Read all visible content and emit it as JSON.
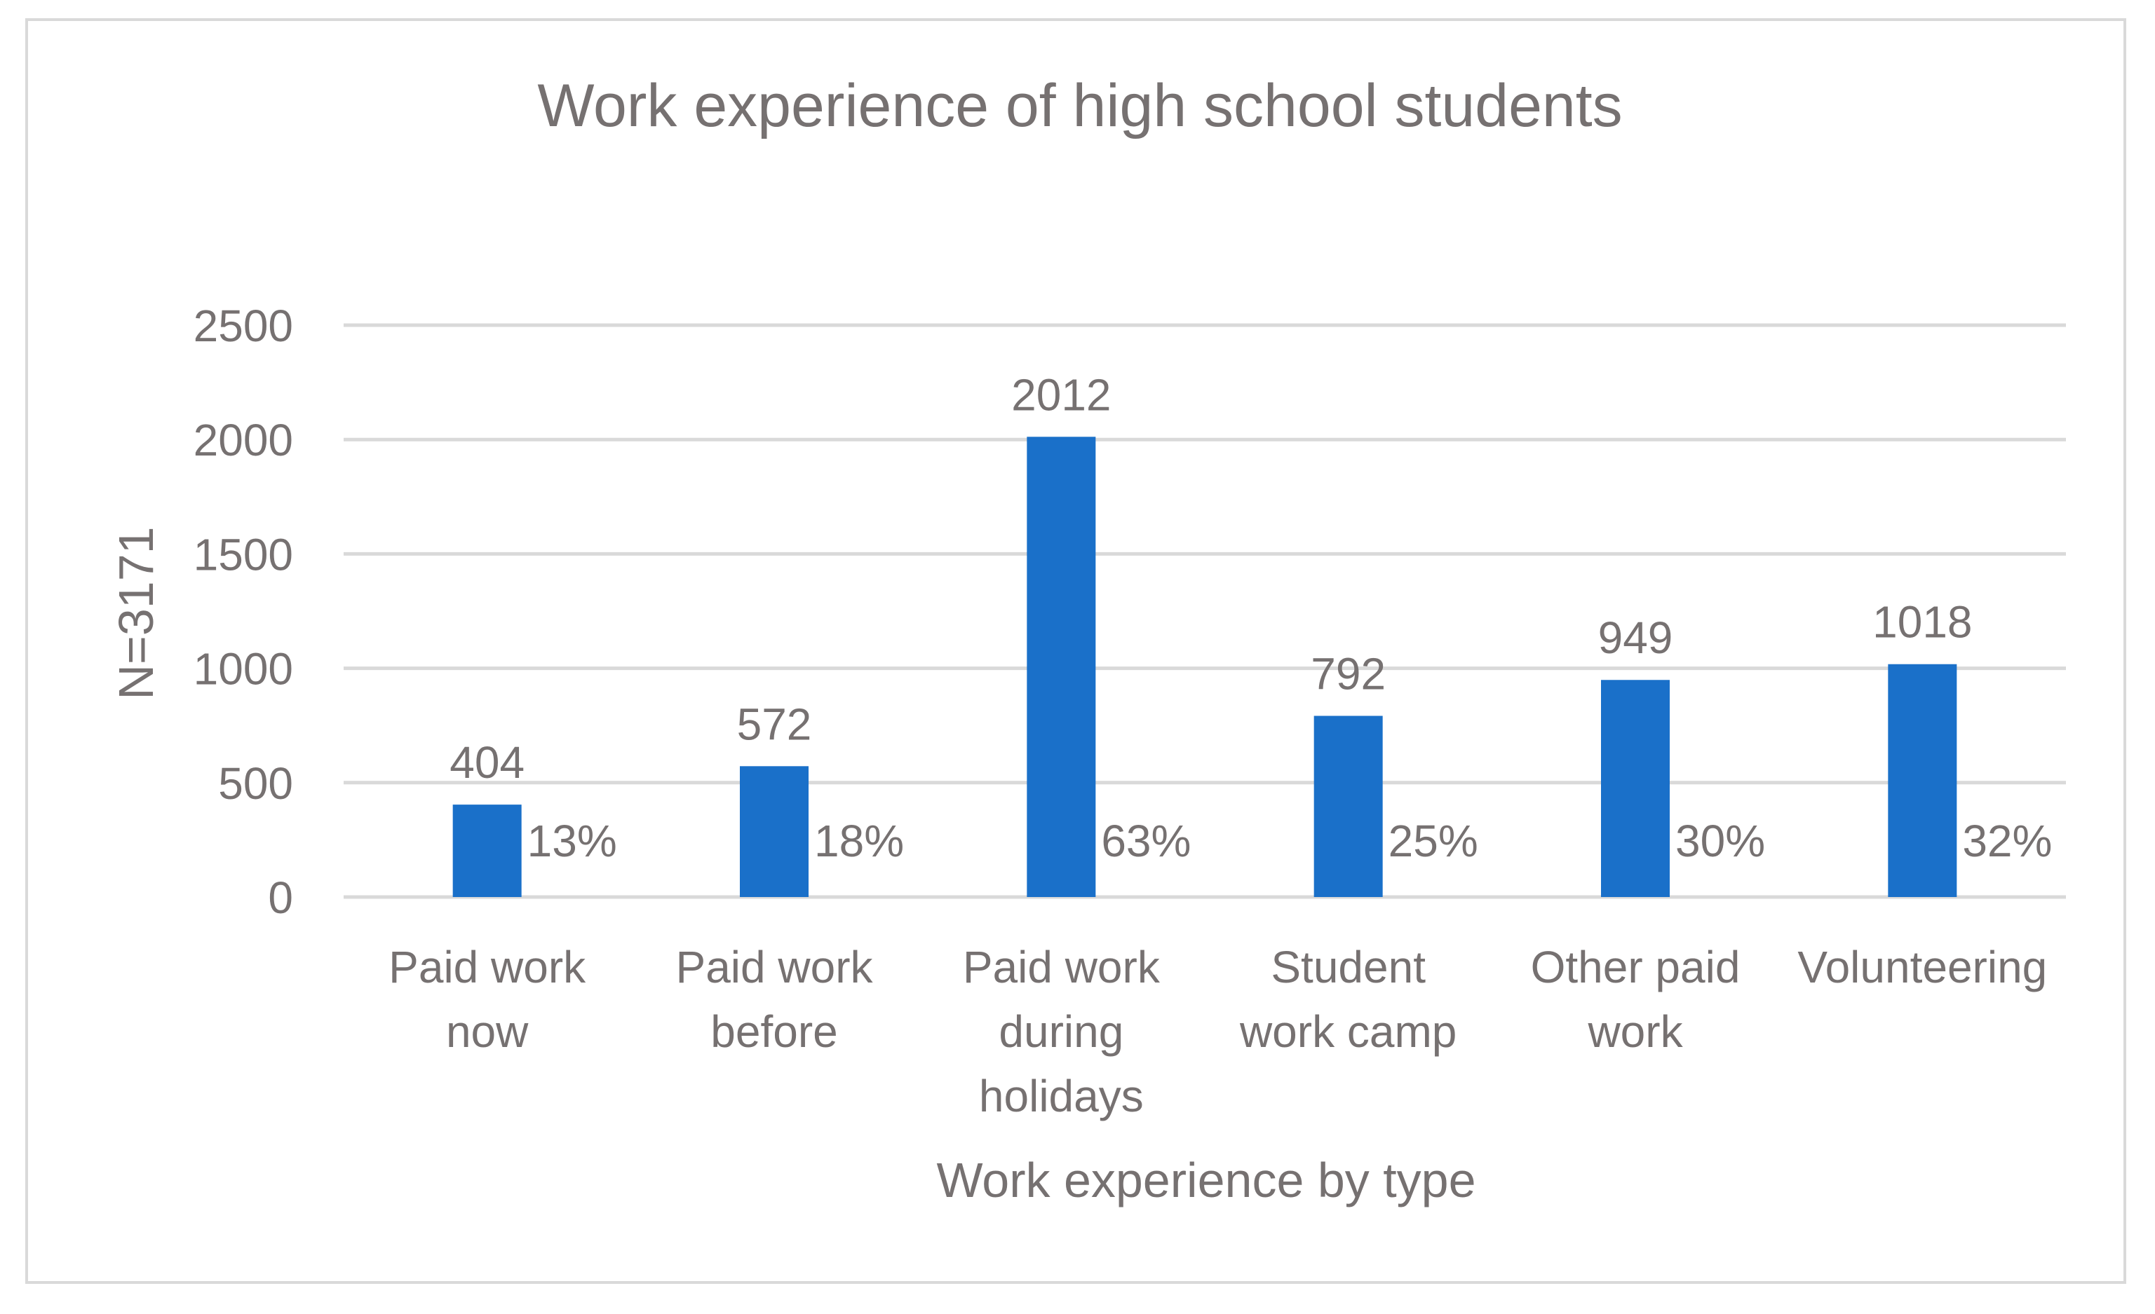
{
  "chart_data": {
    "type": "bar",
    "title": "Work experience of high school students",
    "xlabel": "Work experience by type",
    "ylabel": "N=3171",
    "ylim": [
      0,
      2500
    ],
    "yticks": [
      0,
      500,
      1000,
      1500,
      2000,
      2500
    ],
    "yticks_labels": [
      "0",
      "500",
      "1000",
      "1500",
      "2000",
      "2500"
    ],
    "grid": true,
    "bar_color": "#1a70c9",
    "categories": [
      [
        "Paid work",
        "now"
      ],
      [
        "Paid work",
        "before"
      ],
      [
        "Paid work",
        "during",
        "holidays"
      ],
      [
        "Student",
        "work camp"
      ],
      [
        "Other paid",
        "work"
      ],
      [
        "Volunteering"
      ]
    ],
    "values": [
      404,
      572,
      2012,
      792,
      949,
      1018
    ],
    "value_labels": [
      "404",
      "572",
      "2012",
      "792",
      "949",
      "1018"
    ],
    "percent_labels": [
      "13%",
      "18%",
      "63%",
      "25%",
      "30%",
      "32%"
    ]
  }
}
